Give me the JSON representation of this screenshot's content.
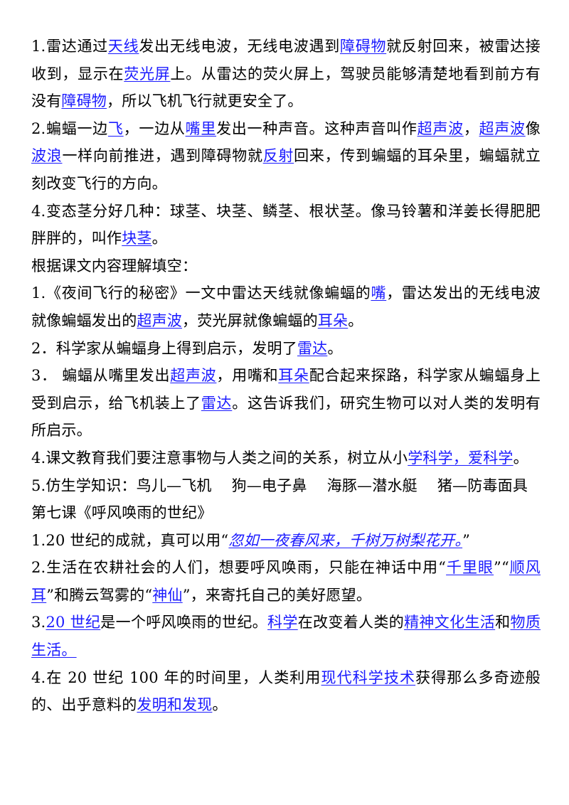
{
  "colors": {
    "text": "#000000",
    "answer": "#1a1aff",
    "background": "#ffffff"
  },
  "paragraphs": [
    [
      {
        "t": "1.雷达通过"
      },
      {
        "t": "天线",
        "a": true
      },
      {
        "t": "发出无线电波，无线电波遇到"
      },
      {
        "t": "障碍物",
        "a": true
      },
      {
        "t": "就反射回来，被雷达接收到，显示在"
      },
      {
        "t": "荧光屏",
        "a": true
      },
      {
        "t": "上。从雷达的荧火屏上，驾驶员能够清楚地看到前方有没有"
      },
      {
        "t": "障碍物",
        "a": true
      },
      {
        "t": "，所以飞机飞行就更安全了。"
      }
    ],
    [
      {
        "t": "2.蝙蝠一边"
      },
      {
        "t": "飞",
        "a": true
      },
      {
        "t": "，一边从"
      },
      {
        "t": "嘴里",
        "a": true
      },
      {
        "t": "发出一种声音。这种声音叫作"
      },
      {
        "t": "超声波",
        "a": true
      },
      {
        "t": "，"
      },
      {
        "t": "超声波",
        "a": true
      },
      {
        "t": "像"
      },
      {
        "t": "波浪",
        "a": true
      },
      {
        "t": "一样向前推进，遇到障碍物就"
      },
      {
        "t": "反射",
        "a": true
      },
      {
        "t": "回来，传到蝙蝠的耳朵里，蝙蝠就立刻改变飞行的方向。"
      }
    ],
    [
      {
        "t": "4.变态茎分好几种：球茎、块茎、鳞茎、根状茎。像马铃薯和洋姜长得肥肥胖胖的，叫作"
      },
      {
        "t": "块茎",
        "a": true
      },
      {
        "t": "。"
      }
    ],
    [
      {
        "t": "根据课文内容理解填空："
      }
    ],
    [
      {
        "t": "1.《夜间飞行的秘密》一文中雷达天线就像蝙蝠的"
      },
      {
        "t": "嘴",
        "a": true
      },
      {
        "t": "，雷达发出的无线电波就像蝙蝠发出的"
      },
      {
        "t": "超声波",
        "a": true
      },
      {
        "t": "，荧光屏就像蝙蝠的"
      },
      {
        "t": "耳朵",
        "a": true
      },
      {
        "t": "。"
      }
    ],
    [
      {
        "t": "2．科学家从蝙蝠身上得到启示，发明了"
      },
      {
        "t": "雷达",
        "a": true
      },
      {
        "t": "。"
      }
    ],
    [
      {
        "t": "3． 蝙蝠从嘴里发出"
      },
      {
        "t": "超声波",
        "a": true
      },
      {
        "t": "，用嘴和"
      },
      {
        "t": "耳朵",
        "a": true
      },
      {
        "t": "配合起来探路，科学家从蝙蝠身上受到启示，给飞机装上了"
      },
      {
        "t": "雷达",
        "a": true
      },
      {
        "t": "。这告诉我们，研究生物可以对人类的发明有所启示。"
      }
    ],
    [
      {
        "t": "4.课文教育我们要注意事物与人类之间的关系，树立从小"
      },
      {
        "t": "学科学，爱科学",
        "a": true
      },
      {
        "t": "。"
      }
    ],
    [
      {
        "t": "5.仿生学知识：鸟儿—飞机"
      },
      {
        "gap": true
      },
      {
        "t": "狗—电子鼻"
      },
      {
        "gap": true
      },
      {
        "t": "海豚—潜水艇"
      },
      {
        "gap": true
      },
      {
        "t": "猪—防毒面具"
      }
    ],
    [
      {
        "t": "第七课《呼风唤雨的世纪》"
      }
    ],
    [
      {
        "t": "1.20 世纪的成就，真可以用“"
      },
      {
        "t": "忽如一夜春风来，千树万树梨花开。",
        "a": true,
        "i": true
      },
      {
        "t": "”"
      }
    ],
    [
      {
        "t": "2.生活在农耕社会的人们，想要呼风唤雨，只能在神话中用“"
      },
      {
        "t": "千里眼",
        "a": true
      },
      {
        "t": "”“"
      },
      {
        "t": "顺风耳",
        "a": true
      },
      {
        "t": "”和腾云驾雾的“"
      },
      {
        "t": "神仙",
        "a": true
      },
      {
        "t": "”，来寄托自己的美好愿望。"
      }
    ],
    [
      {
        "t": "3."
      },
      {
        "t": "20 世纪",
        "a": true
      },
      {
        "t": "是一个呼风唤雨的世纪。"
      },
      {
        "t": "科学",
        "a": true
      },
      {
        "t": "在改变着人类的"
      },
      {
        "t": "精神文化生活",
        "a": true
      },
      {
        "t": "和"
      },
      {
        "t": "物质生活。",
        "a": true
      }
    ],
    [
      {
        "t": "4.在 20 世纪 100 年的时间里，人类利用"
      },
      {
        "t": "现代科学技术",
        "a": true
      },
      {
        "t": "获得那么多奇迹般的、出乎意料的"
      },
      {
        "t": "发明和发现",
        "a": true
      },
      {
        "t": "。"
      }
    ]
  ]
}
